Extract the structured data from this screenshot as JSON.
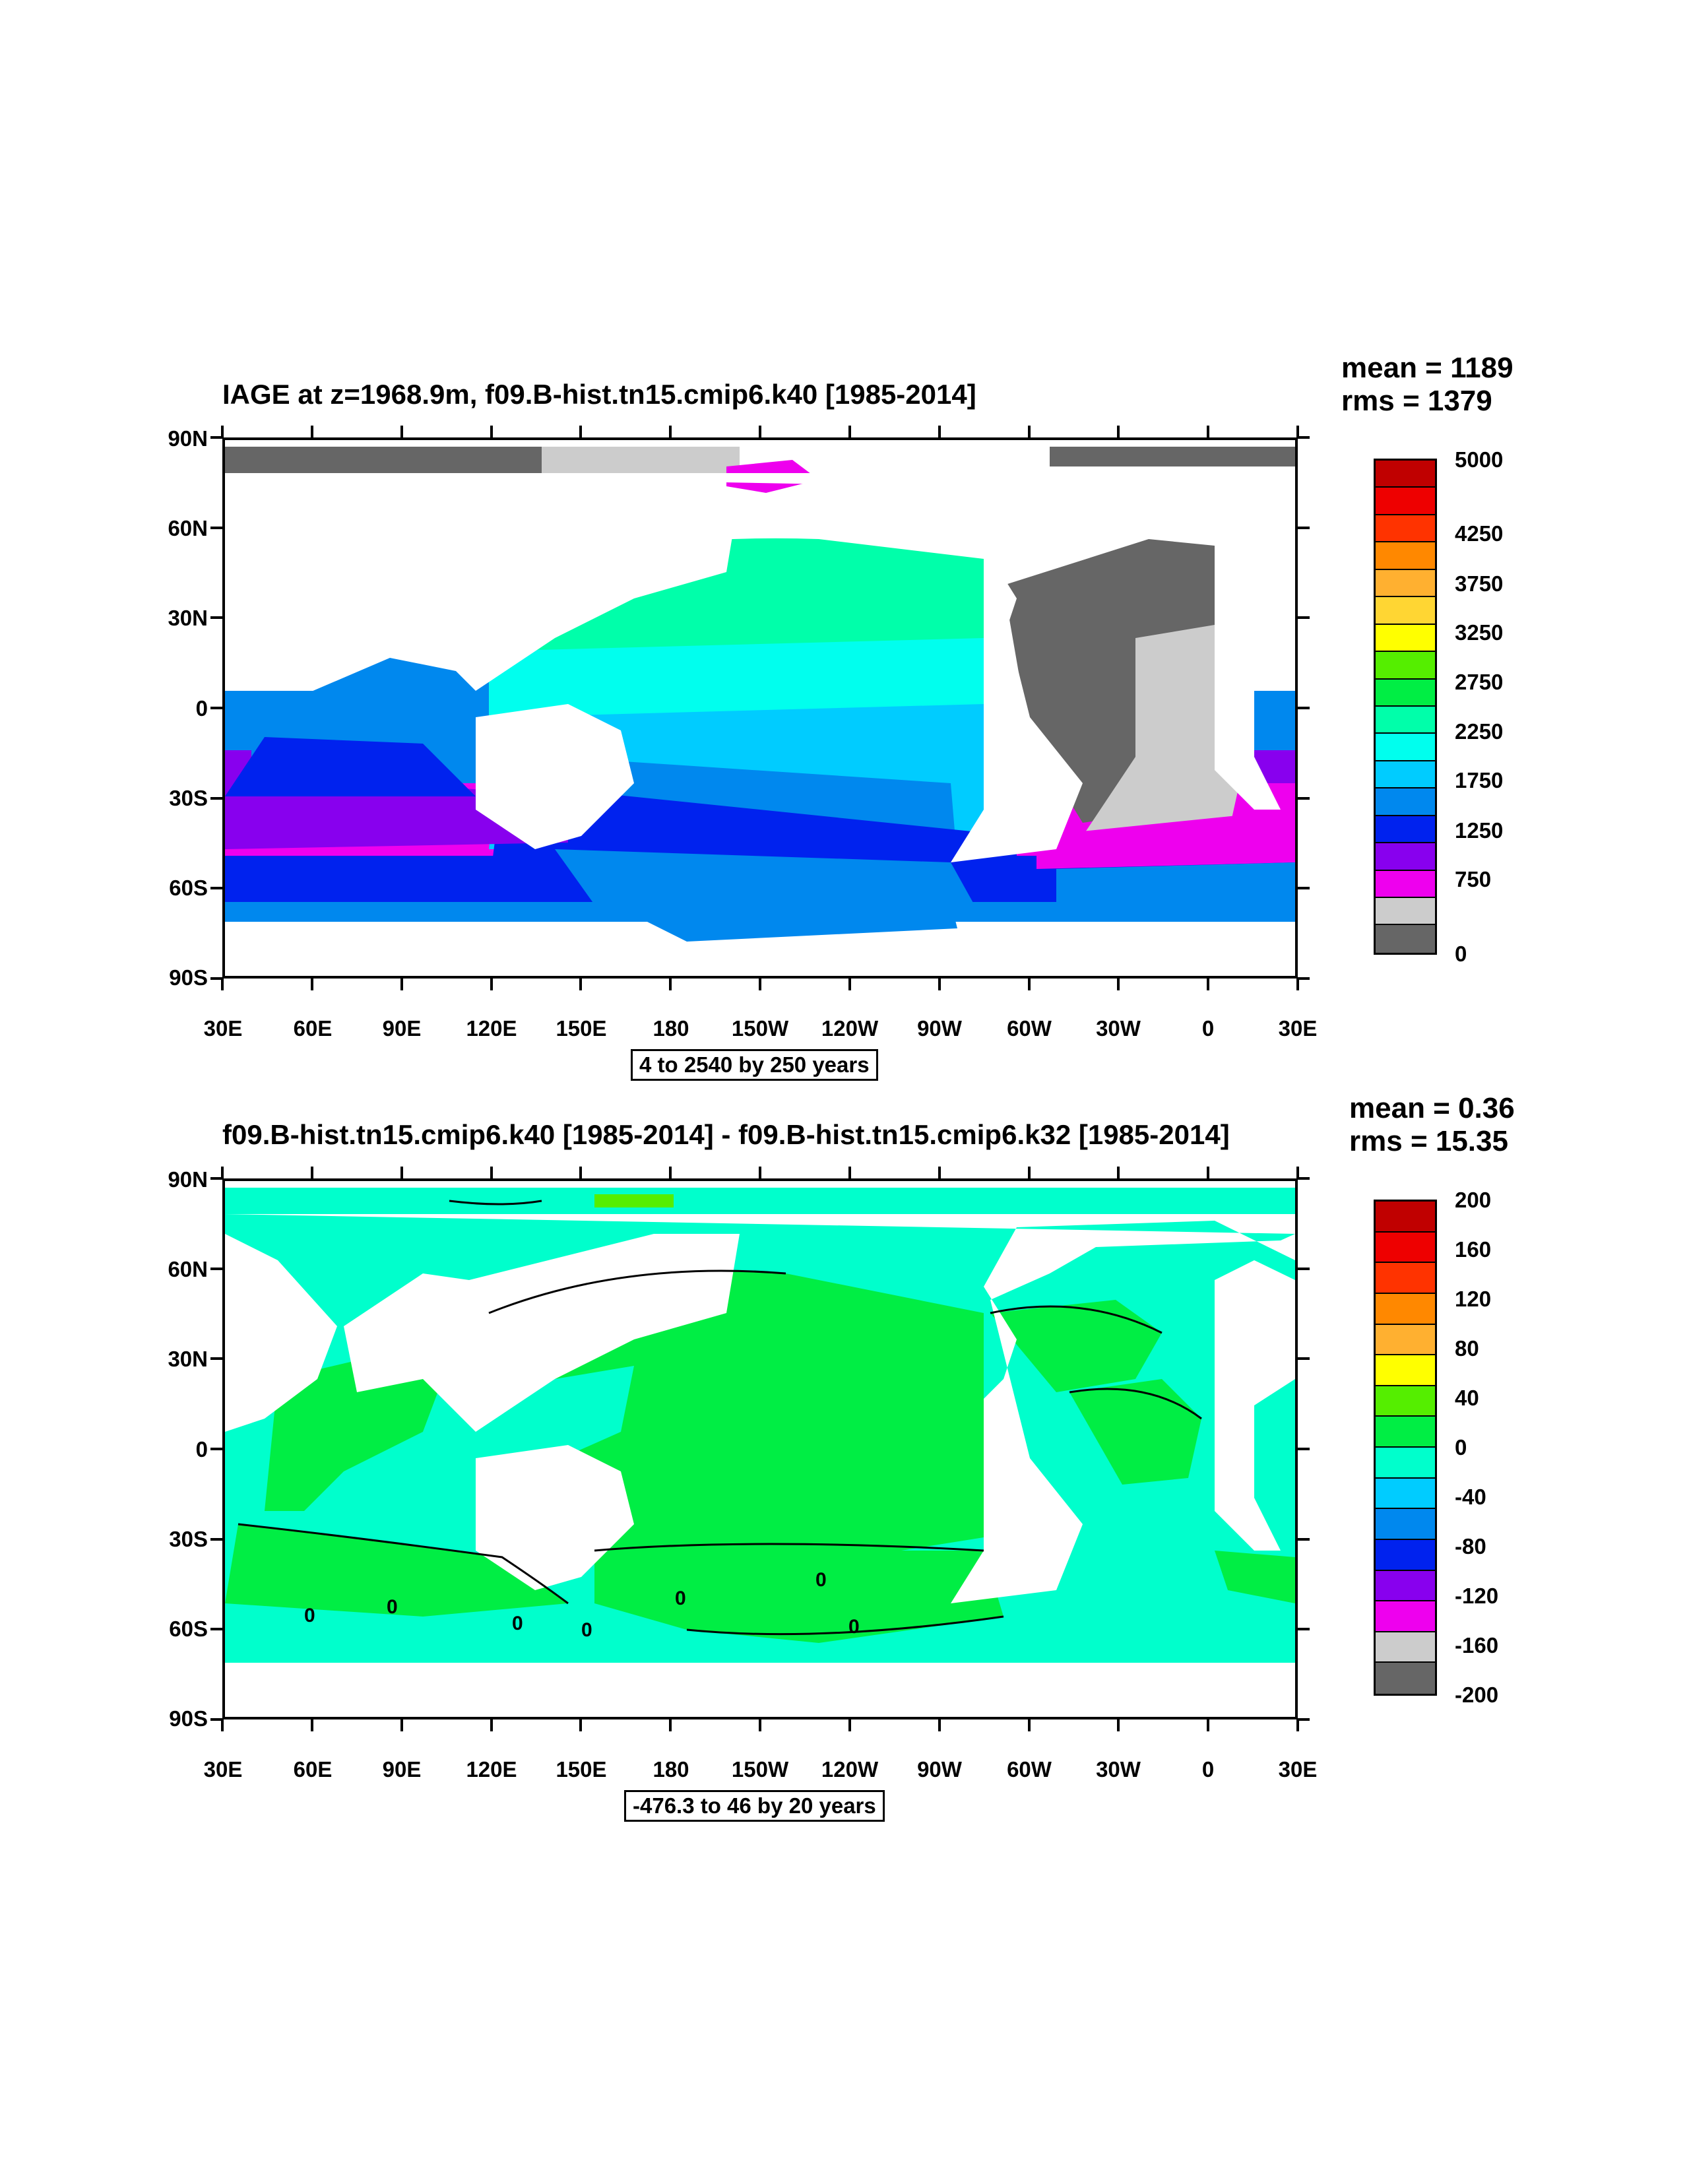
{
  "panels": [
    {
      "title": "IAGE at z=1968.9m, f09.B-hist.tn15.cmip6.k40 [1985-2014]",
      "mean": "mean = 1189",
      "rms": "rms = 1379",
      "contour_info": "4 to 2540 by 250 years",
      "colorbar_labels": [
        "5000",
        "4250",
        "3750",
        "3250",
        "2750",
        "2250",
        "1750",
        "1250",
        "750",
        "0"
      ],
      "colorbar_colors": [
        "#c00000",
        "#ee0000",
        "#ff3300",
        "#ff8800",
        "#ffb030",
        "#ffd633",
        "#ffff00",
        "#55ee00",
        "#00ee44",
        "#00ffaa",
        "#00ffee",
        "#00ccff",
        "#0088ee",
        "#0022ee",
        "#8800ee",
        "#ee00ee",
        "#cccccc",
        "#666666"
      ]
    },
    {
      "title": "f09.B-hist.tn15.cmip6.k40 [1985-2014] - f09.B-hist.tn15.cmip6.k32 [1985-2014]",
      "mean": "mean = 0.36",
      "rms": "rms = 15.35",
      "contour_info": "-476.3 to 46 by 20 years",
      "colorbar_labels": [
        "200",
        "160",
        "120",
        "80",
        "40",
        "0",
        "-40",
        "-80",
        "-120",
        "-160",
        "-200"
      ],
      "colorbar_colors": [
        "#c00000",
        "#ee0000",
        "#ff3300",
        "#ff8800",
        "#ffb030",
        "#ffff00",
        "#55ee00",
        "#00ee44",
        "#00ffcc",
        "#00ccff",
        "#0088ee",
        "#0022ee",
        "#8800ee",
        "#ee00ee",
        "#cccccc",
        "#666666"
      ],
      "contour_labels": [
        "0",
        "0",
        "0",
        "0",
        "0",
        "0",
        "0"
      ]
    }
  ],
  "axes": {
    "lat_ticks": [
      "90N",
      "60N",
      "30N",
      "0",
      "30S",
      "60S",
      "90S"
    ],
    "lon_ticks": [
      "30E",
      "60E",
      "90E",
      "120E",
      "150E",
      "180",
      "150W",
      "120W",
      "90W",
      "60W",
      "30W",
      "0",
      "30E"
    ]
  }
}
